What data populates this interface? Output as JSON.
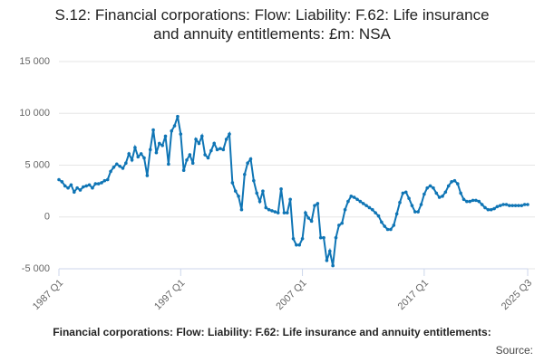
{
  "chart_data": {
    "type": "line",
    "title": "S.12: Financial corporations: Flow: Liability: F.62: Life insurance and annuity entitlements: £m: NSA",
    "caption": "Financial corporations: Flow: Liability: F.62: Life insurance and annuity entitlements:",
    "source": "Source:",
    "categories": [
      "1987 Q1",
      null,
      null,
      null,
      null,
      null,
      null,
      null,
      null,
      null,
      null,
      null,
      null,
      null,
      null,
      null,
      null,
      null,
      null,
      null,
      null,
      null,
      null,
      null,
      null,
      null,
      null,
      null,
      null,
      null,
      null,
      null,
      null,
      null,
      null,
      null,
      null,
      null,
      null,
      null,
      "1997 Q1",
      null,
      null,
      null,
      null,
      null,
      null,
      null,
      null,
      null,
      null,
      null,
      null,
      null,
      null,
      null,
      null,
      null,
      null,
      null,
      null,
      null,
      null,
      null,
      null,
      null,
      null,
      null,
      null,
      null,
      null,
      null,
      null,
      null,
      null,
      null,
      null,
      null,
      null,
      null,
      "2007 Q1",
      null,
      null,
      null,
      null,
      null,
      null,
      null,
      null,
      null,
      null,
      null,
      null,
      null,
      null,
      null,
      null,
      null,
      null,
      null,
      null,
      null,
      null,
      null,
      null,
      null,
      null,
      null,
      null,
      null,
      null,
      null,
      null,
      null,
      null,
      null,
      null,
      null,
      null,
      null,
      "2017 Q1",
      null,
      null,
      null,
      null,
      null,
      null,
      null,
      null,
      null,
      null,
      null,
      null,
      null,
      null,
      null,
      null,
      null,
      null,
      null,
      null,
      null,
      null,
      null,
      null,
      null,
      null,
      null,
      null,
      null,
      null,
      null,
      null,
      null,
      "2025 Q3"
    ],
    "series": [
      {
        "name": "Life insurance and annuity entitlements",
        "color": "#0f75b5",
        "values": [
          3600,
          3400,
          3000,
          2800,
          3100,
          2400,
          2800,
          2600,
          2900,
          3000,
          3100,
          2800,
          3200,
          3200,
          3300,
          3500,
          3600,
          4400,
          4800,
          5100,
          4900,
          4700,
          5200,
          6100,
          5500,
          6700,
          5800,
          6100,
          5700,
          4000,
          6500,
          8400,
          6200,
          7100,
          6900,
          7800,
          5100,
          8300,
          8800,
          9700,
          8000,
          4500,
          5500,
          6000,
          5200,
          7500,
          7100,
          7800,
          6000,
          5700,
          6400,
          7100,
          6500,
          6600,
          6500,
          7500,
          8000,
          3300,
          2500,
          2000,
          700,
          4100,
          5200,
          5600,
          3500,
          2300,
          1500,
          2500,
          900,
          700,
          600,
          500,
          400,
          2700,
          400,
          400,
          1700,
          -2100,
          -2700,
          -2700,
          -2100,
          400,
          -100,
          -400,
          1100,
          1300,
          -2000,
          -2000,
          -4200,
          -3300,
          -4700,
          -2000,
          -800,
          -600,
          700,
          1500,
          2000,
          1900,
          1700,
          1500,
          1300,
          1100,
          900,
          700,
          400,
          100,
          -500,
          -900,
          -1200,
          -1200,
          -800,
          300,
          1400,
          2300,
          2400,
          1800,
          1100,
          500,
          500,
          1200,
          2200,
          2800,
          3000,
          2800,
          2300,
          1900,
          2000,
          2400,
          3000,
          3400,
          3500,
          3200,
          2300,
          1700,
          1500,
          1500,
          1600,
          1600,
          1500,
          1200,
          900,
          700,
          700,
          800,
          1000,
          1100,
          1200,
          1200,
          1100,
          1100,
          1100,
          1100,
          1100,
          1200,
          1200
        ]
      }
    ],
    "ylim": [
      -5000,
      15000
    ],
    "yticks": [
      {
        "value": -5000,
        "label": "-5 000"
      },
      0,
      {
        "value": 5000,
        "label": "5 000"
      },
      {
        "value": 10000,
        "label": "10 000"
      },
      {
        "value": 15000,
        "label": "15 000"
      }
    ],
    "grid": true
  }
}
